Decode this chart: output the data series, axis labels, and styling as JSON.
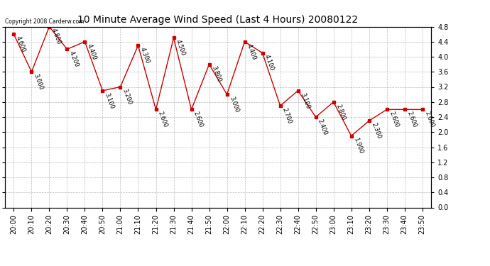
{
  "title": "10 Minute Average Wind Speed (Last 4 Hours) 20080122",
  "copyright": "Copyright 2008 Carderw.com",
  "x_labels": [
    "20:00",
    "20:10",
    "20:20",
    "20:30",
    "20:40",
    "20:50",
    "21:00",
    "21:10",
    "21:20",
    "21:30",
    "21:40",
    "21:50",
    "22:00",
    "22:10",
    "22:20",
    "22:30",
    "22:40",
    "22:50",
    "23:00",
    "23:10",
    "23:20",
    "23:30",
    "23:40",
    "23:50"
  ],
  "y_values": [
    4.6,
    3.6,
    4.8,
    4.2,
    4.4,
    3.1,
    3.2,
    4.3,
    2.6,
    4.5,
    2.6,
    3.8,
    3.0,
    4.4,
    4.1,
    2.7,
    3.1,
    2.4,
    2.8,
    1.9,
    2.3,
    2.6,
    2.6,
    2.6
  ],
  "line_color": "#cc0000",
  "marker_style": "s",
  "marker_size": 3,
  "ylim": [
    0.0,
    4.8
  ],
  "yticks": [
    0.0,
    0.4,
    0.8,
    1.2,
    1.6,
    2.0,
    2.4,
    2.8,
    3.2,
    3.6,
    4.0,
    4.4,
    4.8
  ],
  "grid_color": "#bbbbbb",
  "grid_style": "--",
  "bg_color": "#ffffff",
  "title_fontsize": 10,
  "label_fontsize": 7,
  "annotation_fontsize": 6,
  "copyright_fontsize": 5.5
}
